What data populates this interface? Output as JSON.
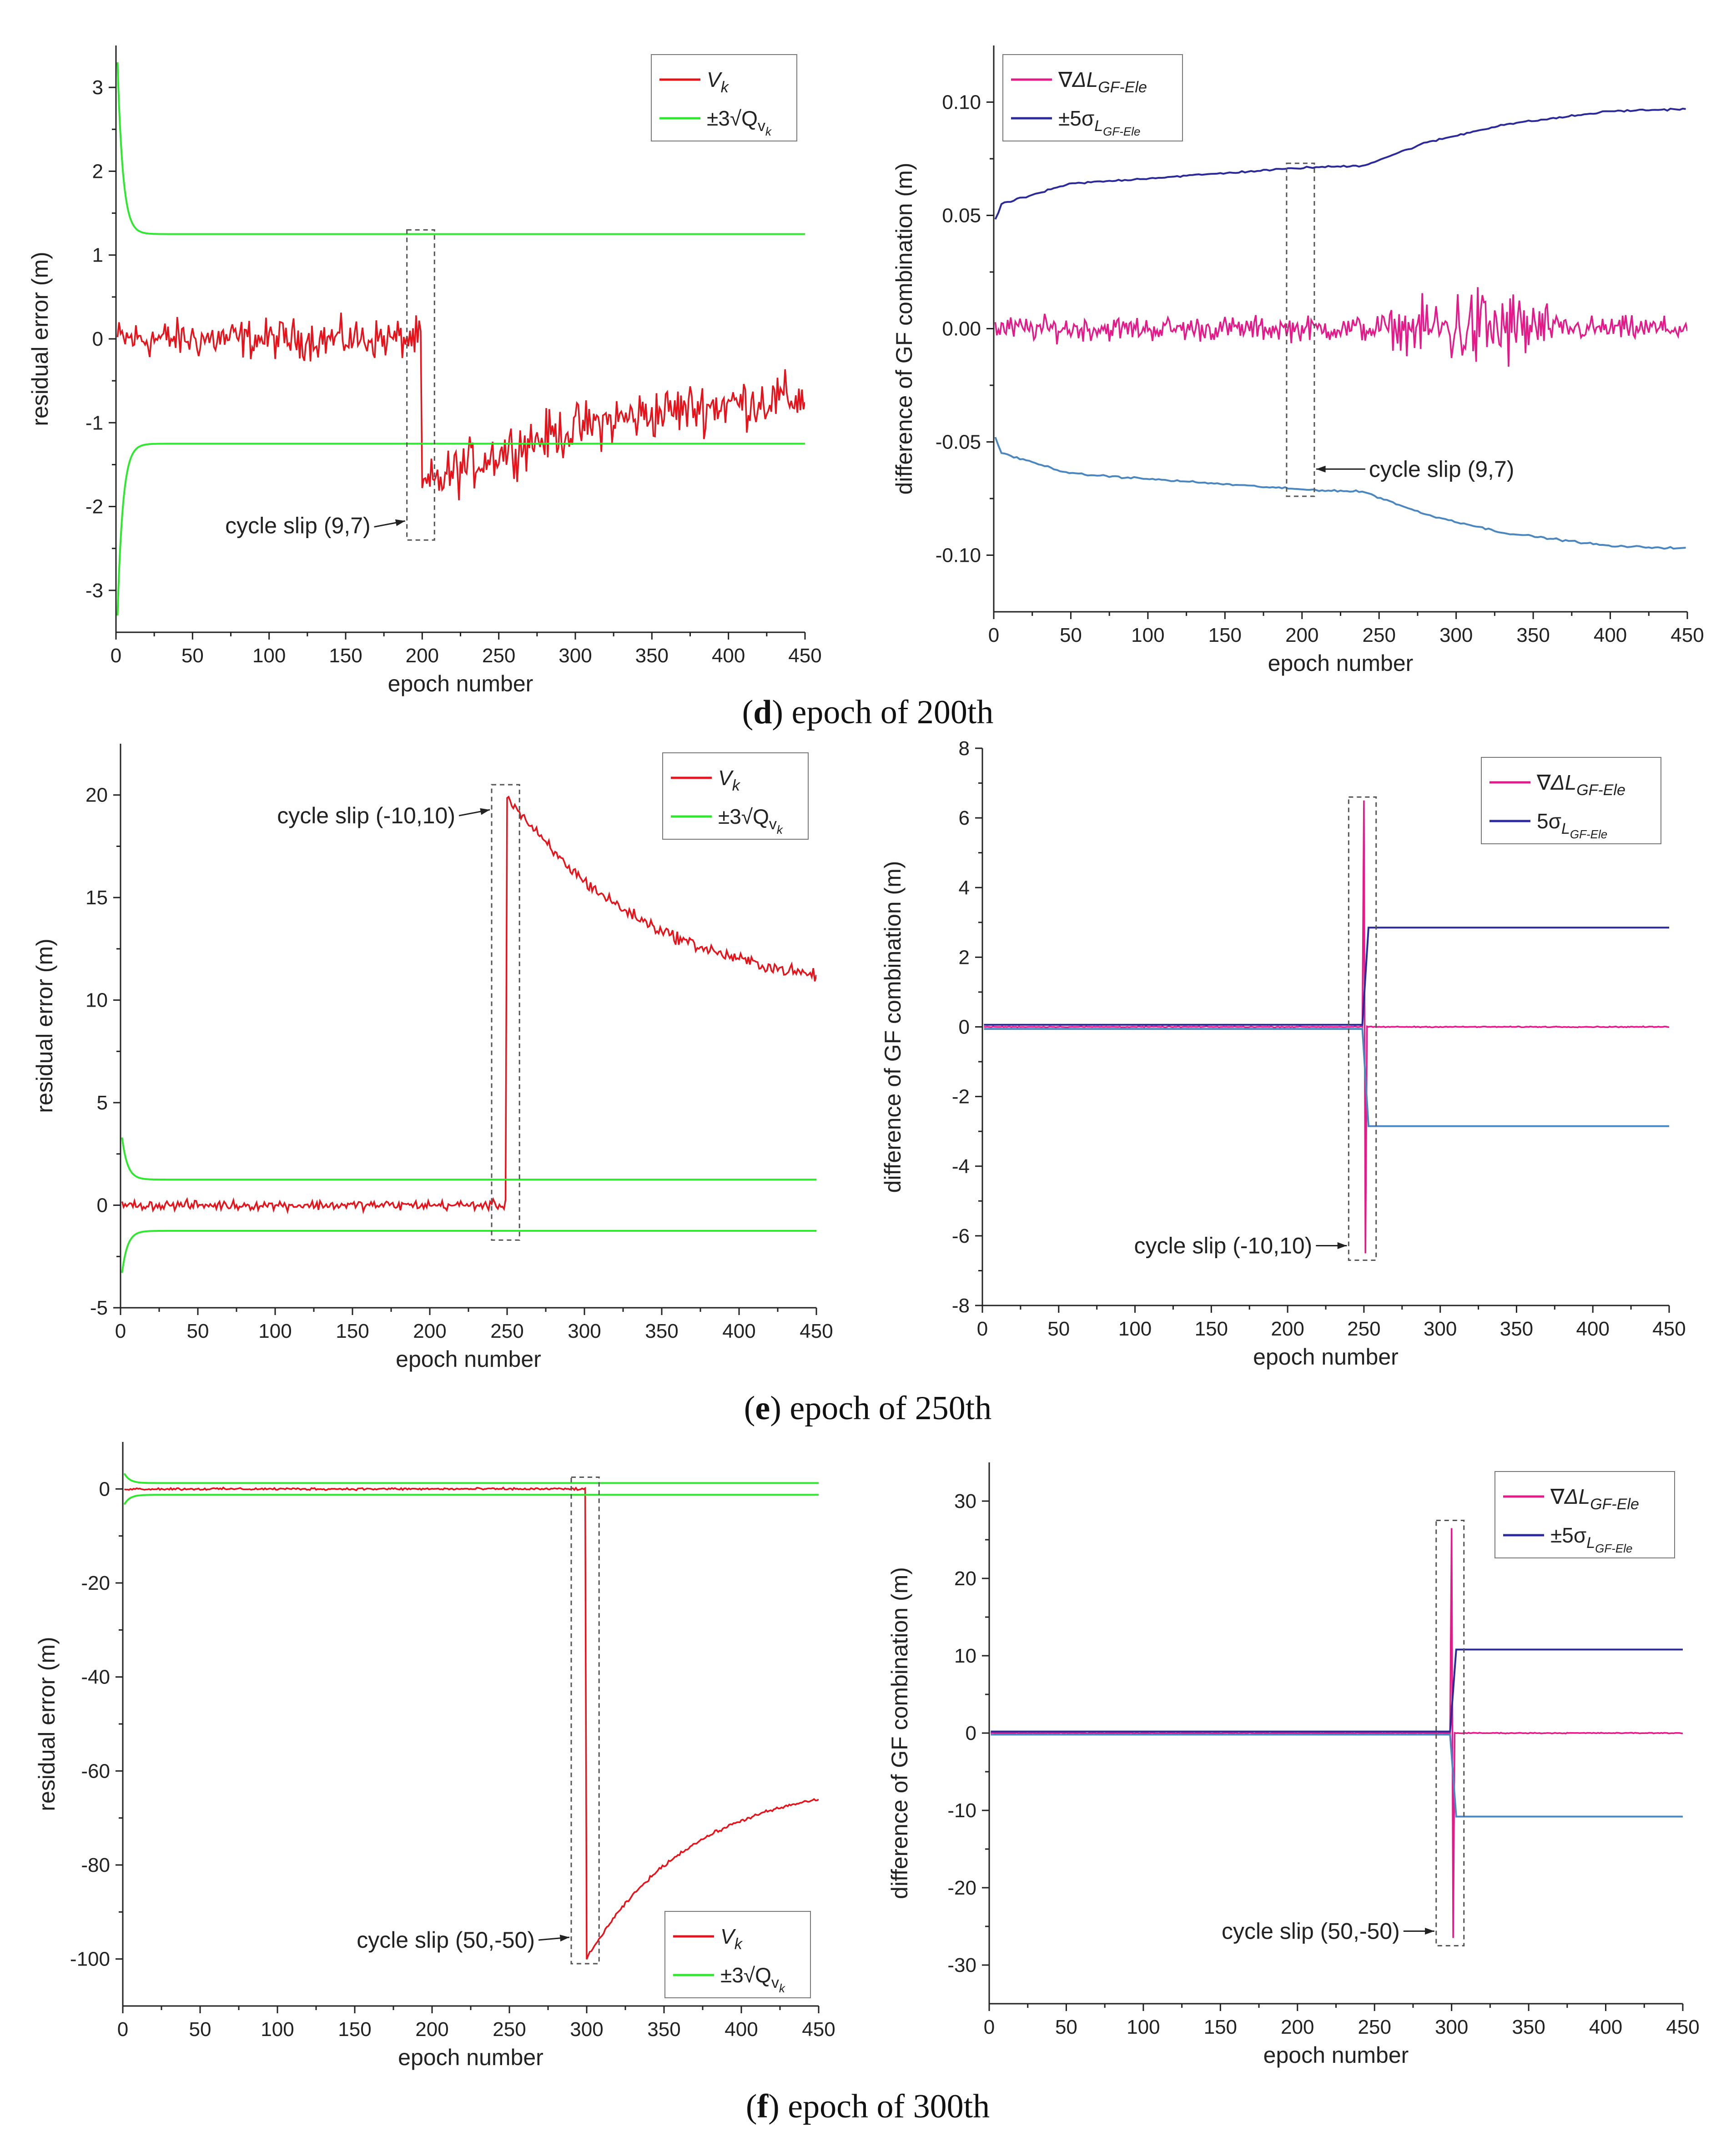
{
  "colors": {
    "residual": "#e8121a",
    "threshold_green": "#2ee82e",
    "gf_pink": "#e6198a",
    "bound_dark_blue": "#2a2a9a",
    "bound_light_blue": "#4a86c0"
  },
  "captions": [
    {
      "letter": "d",
      "text": " epoch of 200th"
    },
    {
      "letter": "e",
      "text": " epoch of 250th"
    },
    {
      "letter": "f",
      "text": " epoch of 300th"
    }
  ],
  "chart_data": [
    {
      "id": "d-left",
      "type": "line",
      "xlabel": "epoch number",
      "ylabel": "residual error (m)",
      "xlim": [
        0,
        450
      ],
      "ylim": [
        -3.5,
        3.5
      ],
      "xticks": [
        0,
        50,
        100,
        150,
        200,
        250,
        300,
        350,
        400,
        450
      ],
      "yticks": [
        -3,
        -2,
        -1,
        0,
        1,
        2,
        3
      ],
      "ytick_labels": [
        "-3",
        "-2",
        "-1",
        "0",
        "1",
        "2",
        "3"
      ],
      "legend": {
        "position": "top-right",
        "entries": [
          {
            "label": "V",
            "sub": "k"
          },
          {
            "label": "±3√Q",
            "sub": "v",
            "subsub": "k"
          }
        ]
      },
      "annotation": {
        "text": "cycle slip (9,7)",
        "x": 200,
        "box_y": [
          -2.4,
          1.3
        ]
      },
      "series": [
        {
          "name": "V_k",
          "kind": "residual",
          "before_mean": 0.0,
          "before_amp": 0.35,
          "jump_at": 200,
          "after_start": -1.8,
          "after_end": -0.7,
          "after_amp": 0.45
        },
        {
          "name": "+3sqrtQ",
          "kind": "decay",
          "start": 3.3,
          "end": 1.25
        },
        {
          "name": "-3sqrtQ",
          "kind": "decay",
          "start": -3.3,
          "end": -1.25
        }
      ]
    },
    {
      "id": "d-right",
      "type": "line",
      "xlabel": "epoch number",
      "ylabel": "difference of GF combination (m)",
      "xlim": [
        0,
        450
      ],
      "ylim": [
        -0.125,
        0.125
      ],
      "xticks": [
        0,
        50,
        100,
        150,
        200,
        250,
        300,
        350,
        400,
        450
      ],
      "yticks": [
        -0.1,
        -0.05,
        0.0,
        0.05,
        0.1
      ],
      "ytick_labels": [
        "-0.10",
        "-0.05",
        "0.00",
        "0.05",
        "0.10"
      ],
      "legend": {
        "position": "top-left",
        "entries": [
          {
            "label": "∇ΔL",
            "sub": "GF-Ele"
          },
          {
            "label": "±5σ",
            "sub": "L",
            "subsub": "GF-Ele"
          }
        ]
      },
      "annotation": {
        "text": "cycle slip (9,7)",
        "x": 200,
        "box_y": [
          -0.074,
          0.073
        ]
      },
      "series": [
        {
          "name": "GF difference",
          "kind": "gf_noise",
          "amp": 0.008,
          "burst_range": [
            235,
            360
          ],
          "burst_amp": 0.03
        },
        {
          "name": "+5sigma",
          "kind": "sigma_upper",
          "levels": [
            [
              0,
              0.046
            ],
            [
              5,
              0.055
            ],
            [
              50,
              0.064
            ],
            [
              200,
              0.071
            ],
            [
              240,
              0.072
            ],
            [
              280,
              0.082
            ],
            [
              330,
              0.09
            ],
            [
              400,
              0.096
            ],
            [
              450,
              0.097
            ]
          ]
        },
        {
          "name": "-5sigma",
          "kind": "sigma_lower",
          "levels": [
            [
              0,
              -0.046
            ],
            [
              5,
              -0.055
            ],
            [
              50,
              -0.064
            ],
            [
              200,
              -0.071
            ],
            [
              240,
              -0.072
            ],
            [
              280,
              -0.082
            ],
            [
              330,
              -0.09
            ],
            [
              400,
              -0.096
            ],
            [
              450,
              -0.097
            ]
          ]
        }
      ]
    },
    {
      "id": "e-left",
      "type": "line",
      "xlabel": "epoch number",
      "ylabel": "residual error (m)",
      "xlim": [
        0,
        450
      ],
      "ylim": [
        -5,
        22.5
      ],
      "xticks": [
        0,
        50,
        100,
        150,
        200,
        250,
        300,
        350,
        400,
        450
      ],
      "yticks": [
        -5,
        0,
        5,
        10,
        15,
        20
      ],
      "ytick_labels": [
        "-5",
        "0",
        "5",
        "10",
        "15",
        "20"
      ],
      "legend": {
        "position": "top-right",
        "entries": [
          {
            "label": "V",
            "sub": "k"
          },
          {
            "label": "±3√Q",
            "sub": "v",
            "subsub": "k"
          }
        ]
      },
      "annotation": {
        "text": "cycle slip (-10,10)",
        "x": 250,
        "box_y": [
          -1.7,
          20.5
        ]
      },
      "series": [
        {
          "name": "V_k",
          "kind": "residual",
          "before_mean": 0.0,
          "before_amp": 0.35,
          "jump_at": 250,
          "after_start": 20.0,
          "after_end": 11.2,
          "after_amp": 0.45
        },
        {
          "name": "+3sqrtQ",
          "kind": "decay",
          "start": 3.3,
          "end": 1.25
        },
        {
          "name": "-3sqrtQ",
          "kind": "decay",
          "start": -3.3,
          "end": -1.25
        }
      ]
    },
    {
      "id": "e-right",
      "type": "line",
      "xlabel": "epoch number",
      "ylabel": "difference of GF combination (m)",
      "xlim": [
        0,
        450
      ],
      "ylim": [
        -8,
        8
      ],
      "xticks": [
        0,
        50,
        100,
        150,
        200,
        250,
        300,
        350,
        400,
        450
      ],
      "yticks": [
        -8,
        -6,
        -4,
        -2,
        0,
        2,
        4,
        6,
        8
      ],
      "ytick_labels": [
        "-8",
        "-6",
        "-4",
        "-2",
        "0",
        "2",
        "4",
        "6",
        "8"
      ],
      "legend": {
        "position": "top-right",
        "entries": [
          {
            "label": "∇ΔL",
            "sub": "GF-Ele"
          },
          {
            "label": "5σ",
            "sub": "L",
            "subsub": "GF-Ele"
          }
        ]
      },
      "annotation": {
        "text": "cycle slip (-10,10)",
        "x": 250,
        "box_y": [
          -6.7,
          6.6
        ]
      },
      "series": [
        {
          "name": "GF difference",
          "kind": "gf_spike",
          "spike_at": 250,
          "spike_max": 6.5,
          "spike_min": -6.5
        },
        {
          "name": "+5sigma",
          "kind": "sigma_step",
          "before": 0.06,
          "jump_at": 250,
          "after": 2.85
        },
        {
          "name": "-5sigma",
          "kind": "sigma_step",
          "before": -0.06,
          "jump_at": 250,
          "after": -2.85
        }
      ]
    },
    {
      "id": "f-left",
      "type": "line",
      "xlabel": "epoch number",
      "ylabel": "residual error (m)",
      "xlim": [
        0,
        450
      ],
      "ylim": [
        -110,
        10
      ],
      "xticks": [
        0,
        50,
        100,
        150,
        200,
        250,
        300,
        350,
        400,
        450
      ],
      "yticks": [
        -100,
        -80,
        -60,
        -40,
        -20,
        0
      ],
      "ytick_labels": [
        "-100",
        "-80",
        "-60",
        "-40",
        "-20",
        "0"
      ],
      "legend": {
        "position": "bottom-right",
        "entries": [
          {
            "label": "V",
            "sub": "k"
          },
          {
            "label": "±3√Q",
            "sub": "v",
            "subsub": "k"
          }
        ]
      },
      "annotation": {
        "text": "cycle slip (50,-50)",
        "x": 300,
        "box_y": [
          -101,
          2.5
        ]
      },
      "series": [
        {
          "name": "V_k",
          "kind": "residual",
          "before_mean": 0.0,
          "before_amp": 0.35,
          "jump_at": 300,
          "after_start": -100,
          "after_end": -66,
          "after_amp": 0.5
        },
        {
          "name": "+3sqrtQ",
          "kind": "decay",
          "start": 3.3,
          "end": 1.25
        },
        {
          "name": "-3sqrtQ",
          "kind": "decay",
          "start": -3.3,
          "end": -1.25
        }
      ]
    },
    {
      "id": "f-right",
      "type": "line",
      "xlabel": "epoch number",
      "ylabel": "difference of GF combination (m)",
      "xlim": [
        0,
        450
      ],
      "ylim": [
        -35,
        35
      ],
      "xticks": [
        0,
        50,
        100,
        150,
        200,
        250,
        300,
        350,
        400,
        450
      ],
      "yticks": [
        -30,
        -20,
        -10,
        0,
        10,
        20,
        30
      ],
      "ytick_labels": [
        "-30",
        "-20",
        "-10",
        "0",
        "10",
        "20",
        "30"
      ],
      "legend": {
        "position": "top-right",
        "entries": [
          {
            "label": "∇ΔL",
            "sub": "GF-Ele"
          },
          {
            "label": "±5σ",
            "sub": "L",
            "subsub": "GF-Ele"
          }
        ]
      },
      "annotation": {
        "text": "cycle slip (50,-50)",
        "x": 300,
        "box_y": [
          -27.5,
          27.5
        ]
      },
      "series": [
        {
          "name": "GF difference",
          "kind": "gf_spike",
          "spike_at": 300,
          "spike_max": 26.5,
          "spike_min": -26.5
        },
        {
          "name": "+5sigma",
          "kind": "sigma_step",
          "before": 0.2,
          "jump_at": 300,
          "after": 10.8
        },
        {
          "name": "-5sigma",
          "kind": "sigma_step",
          "before": -0.2,
          "jump_at": 300,
          "after": -10.8
        }
      ]
    }
  ]
}
